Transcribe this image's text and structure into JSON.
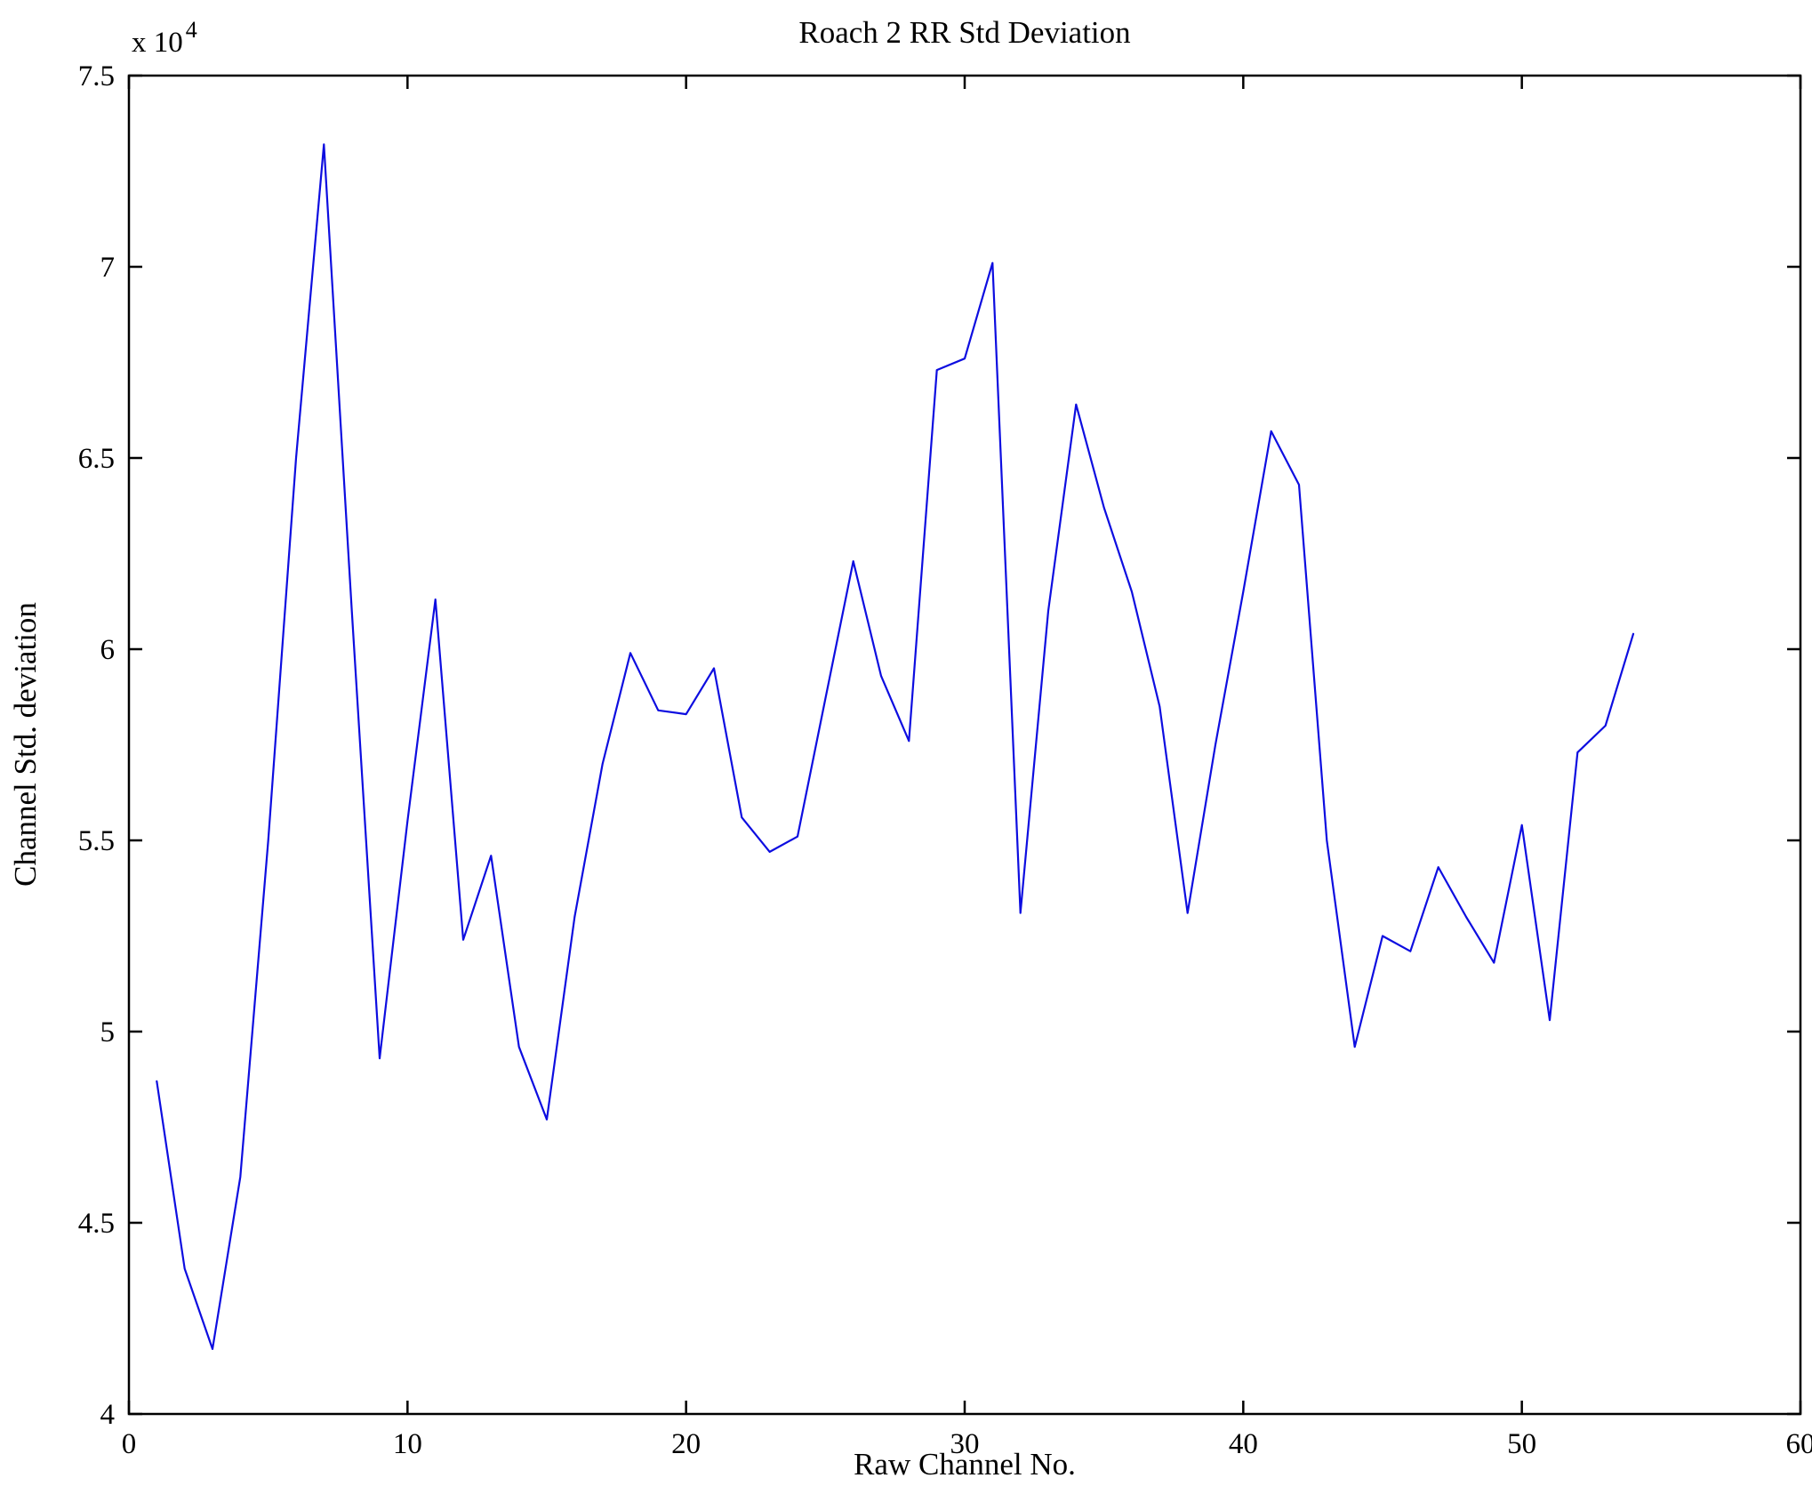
{
  "figure": {
    "background_color": "#ffffff",
    "axes_color": "#000000"
  },
  "chart_data": {
    "type": "line",
    "title": "Roach 2 RR Std Deviation",
    "xlabel": "Raw Channel No.",
    "ylabel": "Channel Std. deviation",
    "y_scale_prefix": "x 10",
    "y_scale_exponent": "4",
    "unit_multiplier": 10000,
    "line_color": "#0d0de0",
    "legend": "none",
    "grid": false,
    "xlim": [
      0,
      60
    ],
    "ylim": [
      4,
      7.5
    ],
    "xticks": [
      0,
      10,
      20,
      30,
      40,
      50,
      60
    ],
    "xtick_labels": [
      "0",
      "10",
      "20",
      "30",
      "40",
      "50",
      "60"
    ],
    "yticks": [
      4,
      4.5,
      5,
      5.5,
      6,
      6.5,
      7,
      7.5
    ],
    "ytick_labels": [
      "4",
      "4.5",
      "5",
      "5.5",
      "6",
      "6.5",
      "7",
      "7.5"
    ],
    "x": [
      1,
      2,
      3,
      4,
      5,
      6,
      7,
      8,
      9,
      10,
      11,
      12,
      13,
      14,
      15,
      16,
      17,
      18,
      19,
      20,
      21,
      22,
      23,
      24,
      25,
      26,
      27,
      28,
      29,
      30,
      31,
      32,
      33,
      34,
      35,
      36,
      37,
      38,
      39,
      40,
      41,
      42,
      43,
      44,
      45,
      46,
      47,
      48,
      49,
      50,
      51,
      52,
      53,
      54
    ],
    "values": [
      4.87,
      4.38,
      4.17,
      4.62,
      5.5,
      6.5,
      7.32,
      6.1,
      4.93,
      5.55,
      6.13,
      5.24,
      5.46,
      4.96,
      4.77,
      5.3,
      5.7,
      5.99,
      5.84,
      5.83,
      5.95,
      5.56,
      5.47,
      5.51,
      5.87,
      6.23,
      5.93,
      5.76,
      6.73,
      6.76,
      7.01,
      5.31,
      6.1,
      6.64,
      6.37,
      6.15,
      5.85,
      5.31,
      5.75,
      6.15,
      6.57,
      6.43,
      5.5,
      4.96,
      5.25,
      5.21,
      5.43,
      5.3,
      5.18,
      5.54,
      5.03,
      5.73,
      5.8,
      6.04
    ]
  }
}
